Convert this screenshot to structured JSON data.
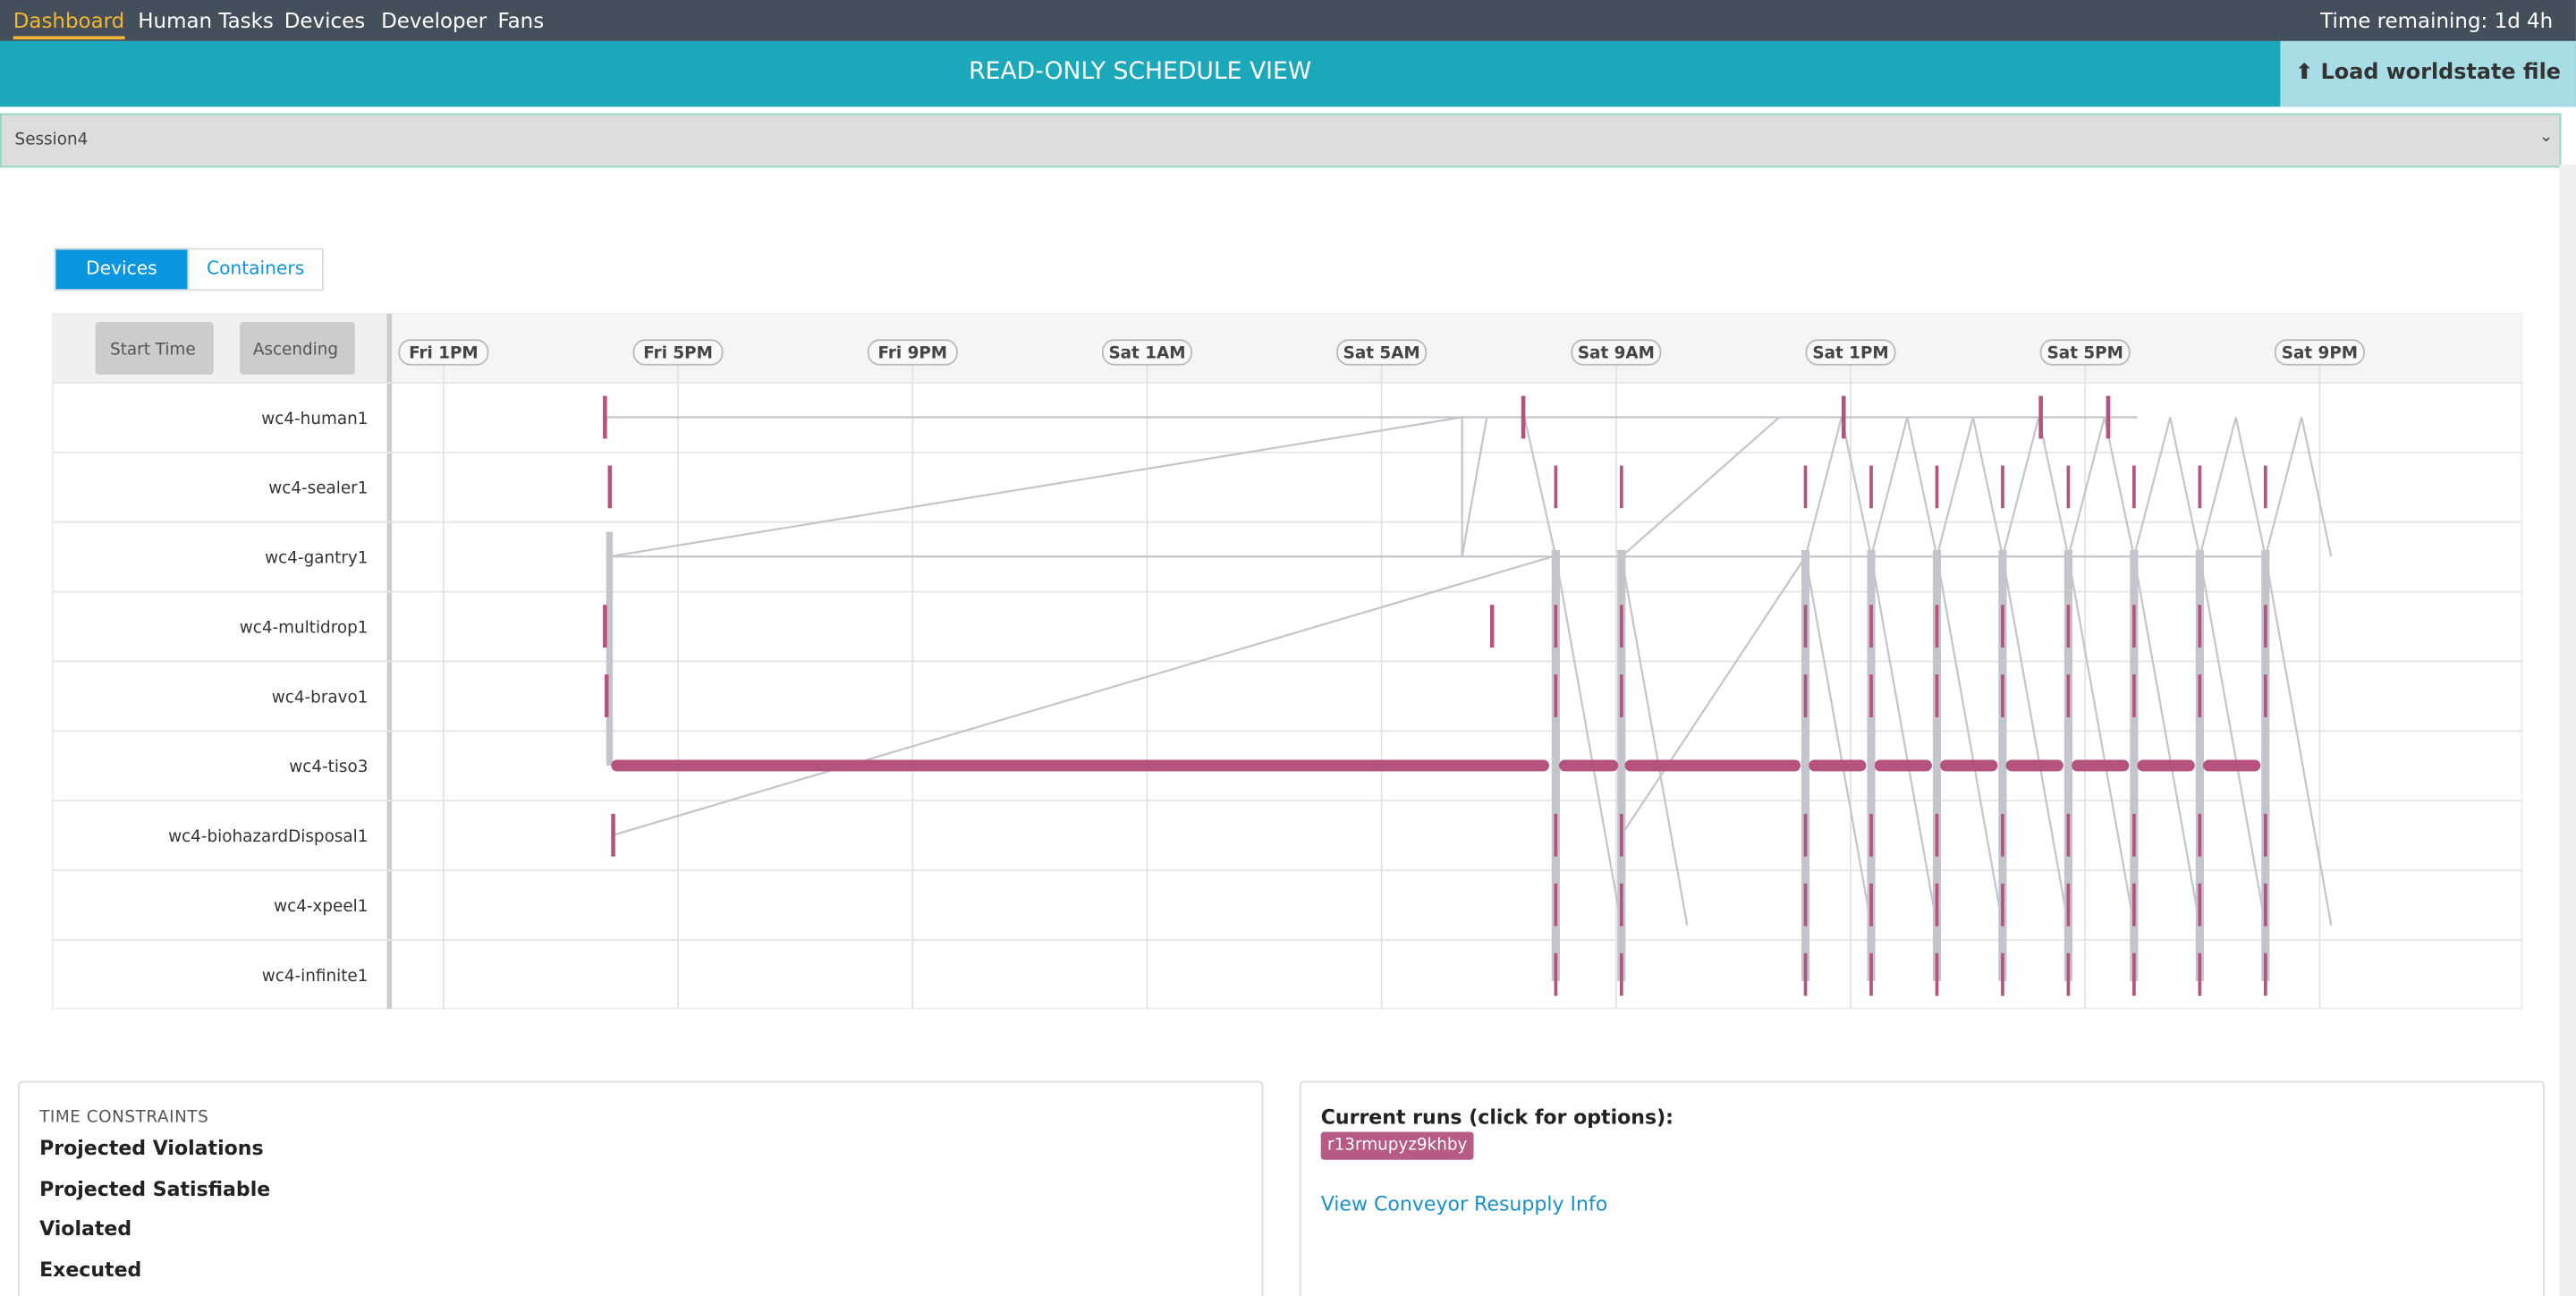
{
  "nav": {
    "items": [
      "Dashboard",
      "Human Tasks",
      "Devices",
      "Developer",
      "Fans"
    ],
    "time_remaining": "Time remaining: 1d 4h"
  },
  "header": {
    "title": "READ-ONLY SCHEDULE VIEW",
    "load_button": "Load worldstate file"
  },
  "session_select": "Session4",
  "tabs": [
    "Devices",
    "Containers"
  ],
  "schedule": {
    "sort_field": "Start Time",
    "sort_order": "Ascending",
    "time_labels": [
      "Fri 1PM",
      "Fri 5PM",
      "Fri 9PM",
      "Sat 1AM",
      "Sat 5AM",
      "Sat 9AM",
      "Sat 1PM",
      "Sat 5PM",
      "Sat 9PM"
    ],
    "devices": [
      "wc4-human1",
      "wc4-sealer1",
      "wc4-gantry1",
      "wc4-multidrop1",
      "wc4-bravo1",
      "wc4-tiso3",
      "wc4-biohazardDisposal1",
      "wc4-xpeel1",
      "wc4-infinite1"
    ]
  },
  "time_constraints": {
    "heading": "TIME CONSTRAINTS",
    "items": [
      "Projected Violations",
      "Projected Satisfiable",
      "Violated",
      "Executed"
    ]
  },
  "runs": {
    "heading": "Current runs (click for options):",
    "run": "r13rmupyz9khby",
    "link": "View Conveyor Resupply Info"
  }
}
